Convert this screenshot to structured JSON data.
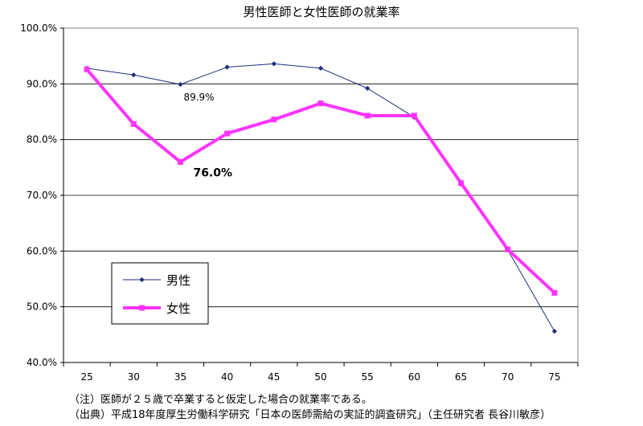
{
  "chart_data": {
    "type": "line",
    "title": "男性医師と女性医師の就業率",
    "categories": [
      "25",
      "30",
      "35",
      "40",
      "45",
      "50",
      "55",
      "60",
      "65",
      "70",
      "75"
    ],
    "ylim": [
      40,
      100
    ],
    "yticks": [
      "100.0%",
      "90.0%",
      "80.0%",
      "70.0%",
      "60.0%",
      "50.0%",
      "40.0%"
    ],
    "grid": true,
    "legend_position": "bottom-left",
    "series": [
      {
        "name": "男性",
        "color": "#1f2d7a",
        "values": [
          92.8,
          91.6,
          89.9,
          93.0,
          93.6,
          92.8,
          89.2,
          84.0,
          72.0,
          60.2,
          45.6
        ]
      },
      {
        "name": "女性",
        "color": "#ff33ff",
        "values": [
          92.6,
          82.8,
          76.0,
          81.1,
          83.6,
          86.5,
          84.3,
          84.3,
          72.2,
          60.3,
          52.5
        ]
      }
    ],
    "annotations": [
      {
        "text": "89.9%",
        "series": 0,
        "index": 2
      },
      {
        "text": "76.0%",
        "series": 1,
        "index": 2
      }
    ]
  },
  "notes": [
    "（注）医師が２５歳で卒業すると仮定した場合の就業率である。",
    "（出典）平成18年度厚生労働科学研究「日本の医師需給の実証的調査研究」（主任研究者 長谷川敏彦）"
  ]
}
